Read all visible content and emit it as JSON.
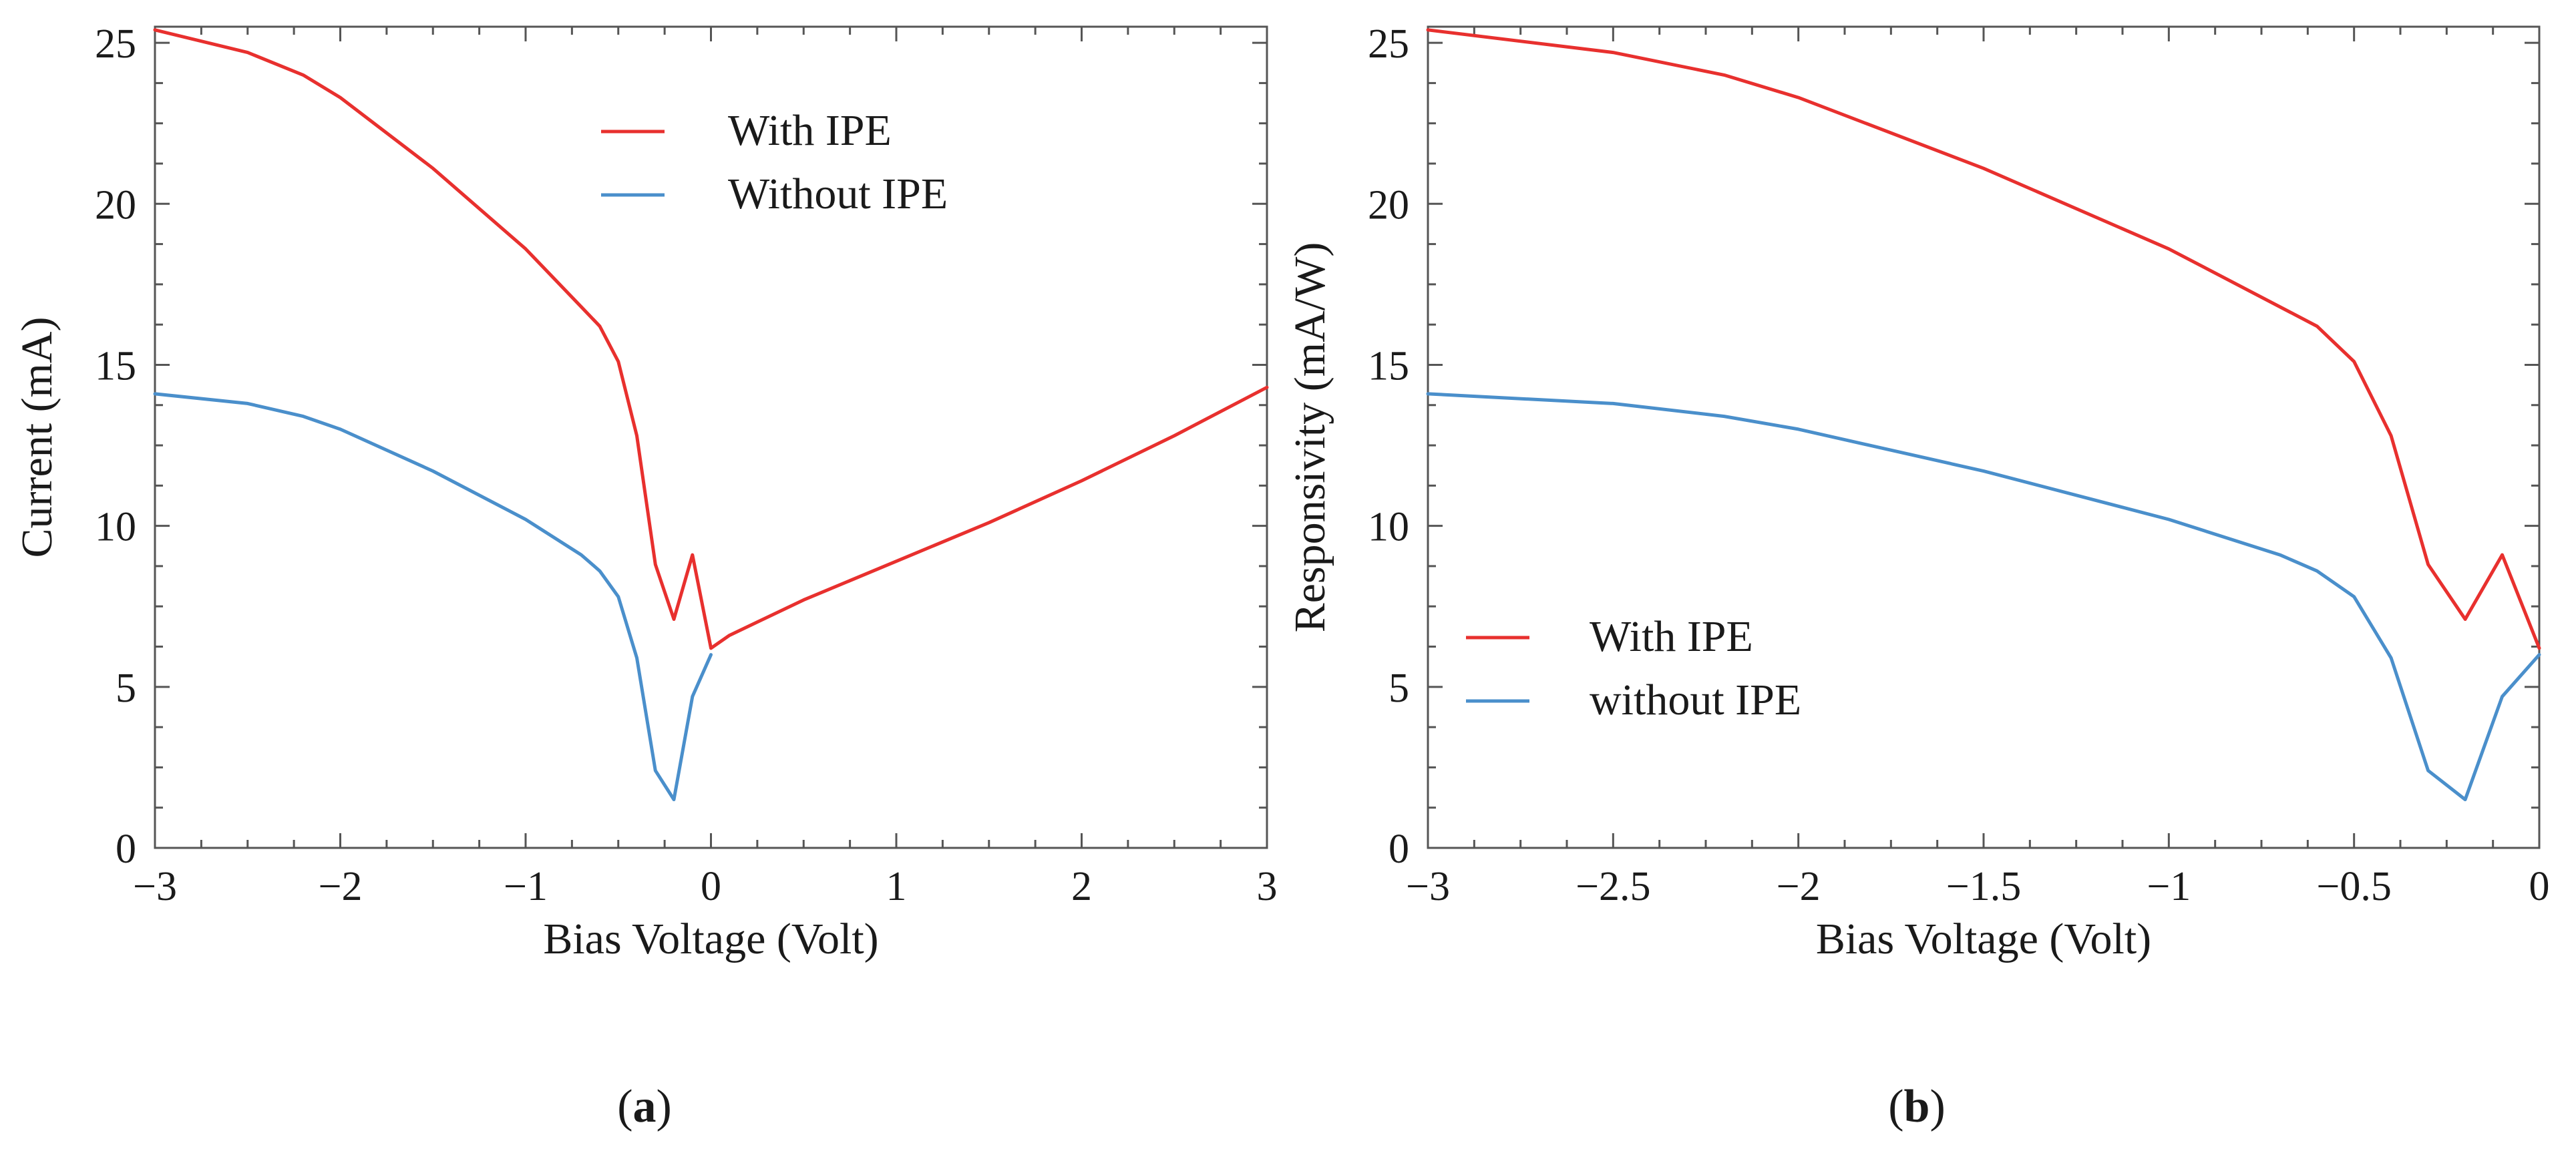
{
  "chart_data": [
    {
      "type": "line",
      "panel_label": "(a)",
      "panel_label_parts": {
        "open": "(",
        "letter": "a",
        "close": ")"
      },
      "xlabel": "Bias Voltage (Volt)",
      "ylabel": "Current (mA)",
      "xlim": [
        -3,
        3
      ],
      "ylim": [
        0,
        25.5
      ],
      "xticks": [
        -3,
        -2,
        -1,
        0,
        1,
        2,
        3
      ],
      "xtick_labels": [
        "−3",
        "−2",
        "−1",
        "0",
        "1",
        "2",
        "3"
      ],
      "yticks": [
        0,
        5,
        10,
        15,
        20,
        25
      ],
      "ytick_labels": [
        "0",
        "5",
        "10",
        "15",
        "20",
        "25"
      ],
      "legend_position": "top-center",
      "series": [
        {
          "name": "With IPE",
          "color": "#e8302e",
          "x": [
            -3,
            -2.5,
            -2.2,
            -2,
            -1.5,
            -1,
            -0.7,
            -0.6,
            -0.5,
            -0.4,
            -0.3,
            -0.2,
            -0.1,
            0,
            0.1,
            0.5,
            1,
            1.5,
            2,
            2.5,
            3
          ],
          "y": [
            25.4,
            24.7,
            24.0,
            23.3,
            21.1,
            18.6,
            16.8,
            16.2,
            15.1,
            12.8,
            8.8,
            7.1,
            9.1,
            6.2,
            6.6,
            7.7,
            8.9,
            10.1,
            11.4,
            12.8,
            14.3
          ]
        },
        {
          "name": "Without IPE",
          "color": "#4a8fcb",
          "x": [
            -3,
            -2.5,
            -2.2,
            -2,
            -1.5,
            -1,
            -0.7,
            -0.6,
            -0.5,
            -0.4,
            -0.3,
            -0.2,
            -0.1,
            0
          ],
          "y": [
            14.1,
            13.8,
            13.4,
            13.0,
            11.7,
            10.2,
            9.1,
            8.6,
            7.8,
            5.9,
            2.4,
            1.5,
            4.7,
            6.0
          ]
        }
      ]
    },
    {
      "type": "line",
      "panel_label": "(b)",
      "panel_label_parts": {
        "open": "(",
        "letter": "b",
        "close": ")"
      },
      "xlabel": "Bias Voltage (Volt)",
      "ylabel": "Responsivity (mA/W)",
      "xlim": [
        -3,
        0
      ],
      "ylim": [
        0,
        25.5
      ],
      "xticks": [
        -3,
        -2.5,
        -2,
        -1.5,
        -1,
        -0.5,
        0
      ],
      "xtick_labels": [
        "−3",
        "−2.5",
        "−2",
        "−1.5",
        "−1",
        "−0.5",
        "0"
      ],
      "yticks": [
        0,
        5,
        10,
        15,
        20,
        25
      ],
      "ytick_labels": [
        "0",
        "5",
        "10",
        "15",
        "20",
        "25"
      ],
      "legend_position": "bottom-left",
      "series": [
        {
          "name": "With IPE",
          "color": "#e8302e",
          "x": [
            -3,
            -2.5,
            -2.2,
            -2,
            -1.5,
            -1,
            -0.7,
            -0.6,
            -0.5,
            -0.4,
            -0.3,
            -0.2,
            -0.1,
            0
          ],
          "y": [
            25.4,
            24.7,
            24.0,
            23.3,
            21.1,
            18.6,
            16.8,
            16.2,
            15.1,
            12.8,
            8.8,
            7.1,
            9.1,
            6.2
          ]
        },
        {
          "name": "without IPE",
          "color": "#4a8fcb",
          "x": [
            -3,
            -2.5,
            -2.2,
            -2,
            -1.5,
            -1,
            -0.7,
            -0.6,
            -0.5,
            -0.4,
            -0.3,
            -0.2,
            -0.1,
            0
          ],
          "y": [
            14.1,
            13.8,
            13.4,
            13.0,
            11.7,
            10.2,
            9.1,
            8.6,
            7.8,
            5.9,
            2.4,
            1.5,
            4.7,
            6.0
          ]
        }
      ]
    }
  ]
}
